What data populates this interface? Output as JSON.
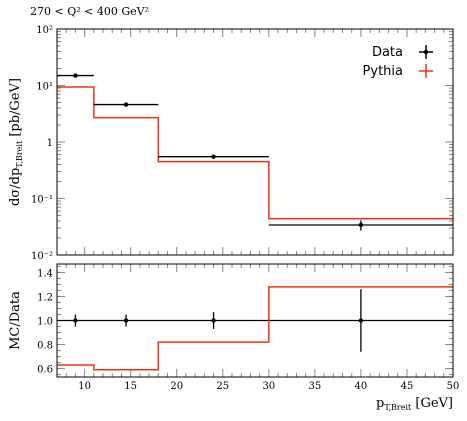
{
  "chart_data": {
    "type": "line",
    "title": "270 < Q² < 400 GeV²",
    "xlabel": "p_T,Breit [GeV]",
    "xlim": [
      7,
      50
    ],
    "x_ticks": [
      "10",
      "15",
      "20",
      "25",
      "30",
      "35",
      "40",
      "45",
      "50"
    ],
    "x_tick_values": [
      10,
      15,
      20,
      25,
      30,
      35,
      40,
      45,
      50
    ],
    "bin_edges": [
      7,
      11,
      18,
      30,
      50
    ],
    "legend_position": "top-right",
    "top_panel": {
      "ylabel": "dσ/dp_T,Breit [pb/GeV]",
      "yscale": "log",
      "ylim": [
        0.01,
        100
      ],
      "y_tick_values": [
        0.01,
        0.1,
        1,
        10,
        100
      ],
      "y_ticks": [
        "10⁻²",
        "10⁻¹",
        "1",
        "10¹",
        "10²"
      ],
      "series": [
        {
          "name": "Data",
          "color": "#000000",
          "x": [
            9,
            14.5,
            24,
            40
          ],
          "values": [
            15.0,
            4.6,
            0.55,
            0.034
          ],
          "err_low": [
            0.6,
            0.25,
            0.035,
            0.007
          ],
          "err_high": [
            0.6,
            0.25,
            0.035,
            0.007
          ]
        },
        {
          "name": "Pythia",
          "color": "#ee3311",
          "values": [
            9.4,
            2.7,
            0.45,
            0.044
          ]
        }
      ]
    },
    "ratio_panel": {
      "ylabel": "MC/Data",
      "ylim": [
        0.53,
        1.47
      ],
      "y_tick_values": [
        0.6,
        0.8,
        1.0,
        1.2,
        1.4
      ],
      "y_ticks": [
        "0.6",
        "0.8",
        "1.0",
        "1.2",
        "1.4"
      ],
      "reference": 1.0,
      "data_points": {
        "x": [
          9,
          14.5,
          24,
          40
        ],
        "values": [
          1.0,
          1.0,
          1.0,
          1.0
        ],
        "err_low": [
          0.05,
          0.05,
          0.07,
          0.26
        ],
        "err_high": [
          0.05,
          0.05,
          0.07,
          0.26
        ]
      },
      "mc_values": [
        0.63,
        0.59,
        0.82,
        1.28
      ]
    }
  },
  "colors": {
    "data": "#000000",
    "mc": "#ee3311",
    "frame": "#000000",
    "ticks": "#888888"
  },
  "legend": {
    "data_label": "Data",
    "mc_label": "Pythia"
  }
}
